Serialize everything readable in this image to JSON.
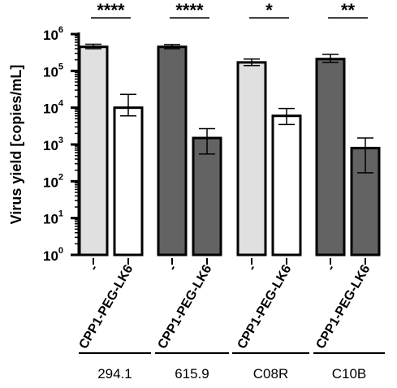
{
  "chart_data": {
    "type": "bar",
    "ylabel": "Virus yield [copies/mL]",
    "yscale": "log10",
    "ylim": [
      1,
      1000000
    ],
    "yticks": [
      {
        "base": "10",
        "exp": "0"
      },
      {
        "base": "10",
        "exp": "1"
      },
      {
        "base": "10",
        "exp": "2"
      },
      {
        "base": "10",
        "exp": "3"
      },
      {
        "base": "10",
        "exp": "4"
      },
      {
        "base": "10",
        "exp": "5"
      },
      {
        "base": "10",
        "exp": "6"
      }
    ],
    "categories": [
      "-",
      "CPP1-PEG-LK6",
      "-",
      "CPP1-PEG-LK6",
      "-",
      "CPP1-PEG-LK6",
      "-",
      "CPP1-PEG-LK6"
    ],
    "groups": [
      "294.1",
      "615.9",
      "C08R",
      "C10B"
    ],
    "values": [
      450000,
      10000,
      450000,
      1500,
      170000,
      6000,
      210000,
      800
    ],
    "error_low": [
      400000,
      6000,
      400000,
      550,
      140000,
      3500,
      170000,
      170
    ],
    "error_high": [
      530000,
      23000,
      520000,
      2700,
      210000,
      9500,
      280000,
      1500
    ],
    "bar_colors": [
      "#e0e0e0",
      "#ffffff",
      "#636363",
      "#636363",
      "#e0e0e0",
      "#ffffff",
      "#636363",
      "#636363"
    ],
    "significance": [
      "****",
      "****",
      "*",
      "**"
    ],
    "grid": false
  }
}
